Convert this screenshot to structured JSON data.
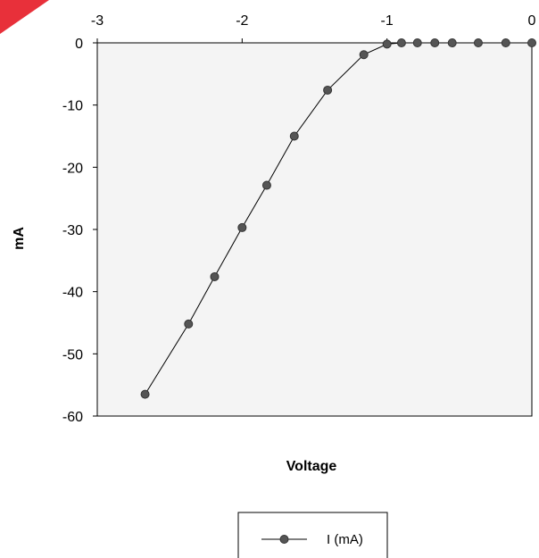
{
  "chart_data": {
    "type": "line",
    "title": "",
    "xlabel": "Voltage",
    "ylabel": "mA",
    "xlim": [
      -3,
      0
    ],
    "ylim": [
      -60,
      0
    ],
    "x_ticks": [
      "-3",
      "-2",
      "-1",
      "0"
    ],
    "y_ticks": [
      "0",
      "-10",
      "-20",
      "-30",
      "-40",
      "-50",
      "-60"
    ],
    "x_axis_position": "top",
    "grid": false,
    "legend_position": "bottom-center",
    "colors": {
      "plot_background": "#f4f4f4",
      "series": "#555555",
      "line": "#000000"
    },
    "series": [
      {
        "name": "I (mA)",
        "marker": "circle",
        "points": [
          [
            -2.67,
            -56.5
          ],
          [
            -2.37,
            -45.2
          ],
          [
            -2.19,
            -37.6
          ],
          [
            -2.0,
            -29.7
          ],
          [
            -1.83,
            -22.9
          ],
          [
            -1.64,
            -15.0
          ],
          [
            -1.41,
            -7.6
          ],
          [
            -1.16,
            -1.9
          ],
          [
            -1.0,
            -0.2
          ],
          [
            -0.9,
            0.0
          ],
          [
            -0.79,
            0.0
          ],
          [
            -0.67,
            0.0
          ],
          [
            -0.55,
            0.0
          ],
          [
            -0.37,
            0.0
          ],
          [
            -0.18,
            0.0
          ],
          [
            0.0,
            0.0
          ]
        ]
      }
    ]
  }
}
